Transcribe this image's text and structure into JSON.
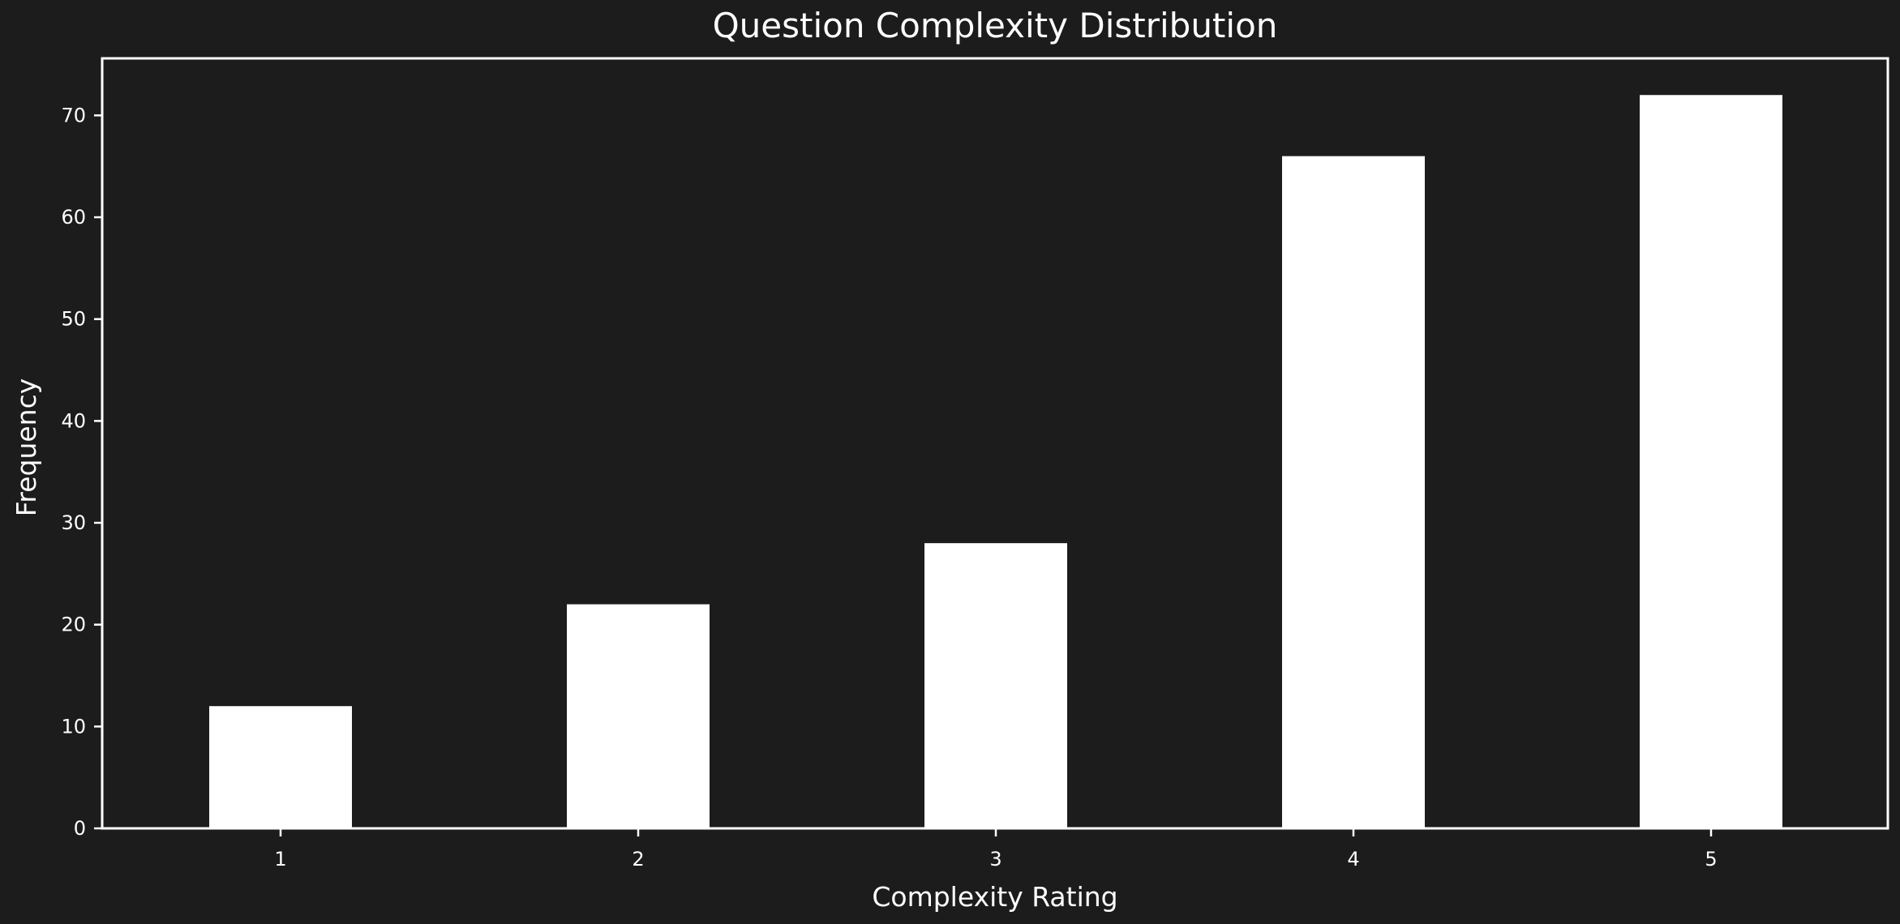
{
  "chart_data": {
    "type": "bar",
    "title": "Question Complexity Distribution",
    "xlabel": "Complexity Rating",
    "ylabel": "Frequency",
    "categories": [
      "1",
      "2",
      "3",
      "4",
      "5"
    ],
    "values": [
      12,
      22,
      28,
      66,
      72
    ],
    "ylim": [
      0,
      75.6
    ],
    "yticks": [
      0,
      10,
      20,
      30,
      40,
      50,
      60,
      70
    ],
    "ytick_labels": [
      "0",
      "10",
      "20",
      "30",
      "40",
      "50",
      "60",
      "70"
    ],
    "grid": false,
    "legend": "none",
    "colors": {
      "background": "#1c1c1c",
      "bar": "#ffffff",
      "axes": "#ffffff",
      "text": "#ffffff"
    }
  }
}
